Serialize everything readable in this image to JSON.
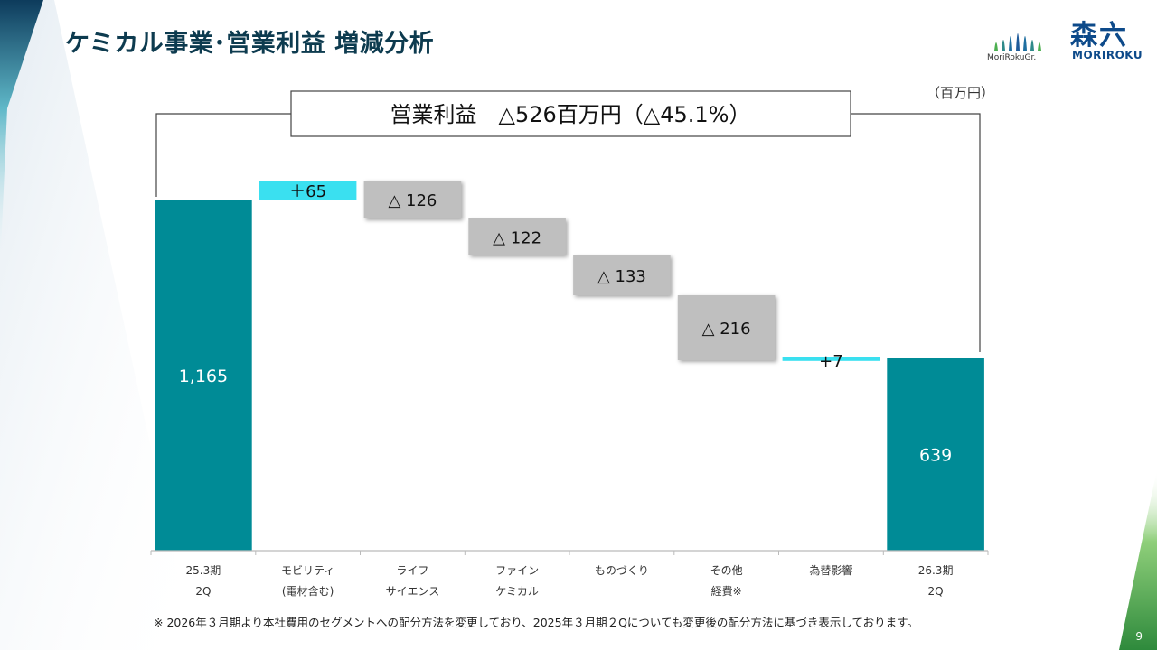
{
  "page": {
    "title": "ケミカル事業･営業利益 増減分析",
    "unit": "（百万円）",
    "page_number": "9",
    "footnote": "※ 2026年３月期より本社費用のセグメントへの配分方法を変更しており、2025年３月期２Qについても変更後の配分方法に基づき表示しております。",
    "logo_left_text": "MoriRokuGr.",
    "logo_right_kanji": "森六",
    "logo_right_text": "MORIROKU"
  },
  "colors": {
    "base_bar": "#008b96",
    "increase_bar": "#3ae0f0",
    "decrease_bar": "#bfbfbf",
    "title": "#0d3b4f"
  },
  "chart_data": {
    "type": "waterfall",
    "title": "",
    "summary": "営業利益　△526百万円（△45.1%）",
    "ylim": [
      0,
      1230
    ],
    "bars": [
      {
        "kind": "total",
        "value": 1165,
        "label": "1,165",
        "category": [
          "25.3期",
          "2Q"
        ]
      },
      {
        "kind": "delta",
        "value": 65,
        "label": "＋65",
        "category": [
          "モビリティ",
          "(電材含む)"
        ]
      },
      {
        "kind": "delta",
        "value": -126,
        "label": "△ 126",
        "category": [
          "ライフ",
          "サイエンス"
        ]
      },
      {
        "kind": "delta",
        "value": -122,
        "label": "△ 122",
        "category": [
          "ファイン",
          "ケミカル"
        ]
      },
      {
        "kind": "delta",
        "value": -133,
        "label": "△ 133",
        "category": [
          "ものづくり"
        ]
      },
      {
        "kind": "delta",
        "value": -216,
        "label": "△ 216",
        "category": [
          "その他",
          "経費※"
        ]
      },
      {
        "kind": "delta",
        "value": 7,
        "label": "+7",
        "category": [
          "為替影響"
        ]
      },
      {
        "kind": "total",
        "value": 639,
        "label": "639",
        "category": [
          "26.3期",
          "2Q"
        ]
      }
    ]
  }
}
